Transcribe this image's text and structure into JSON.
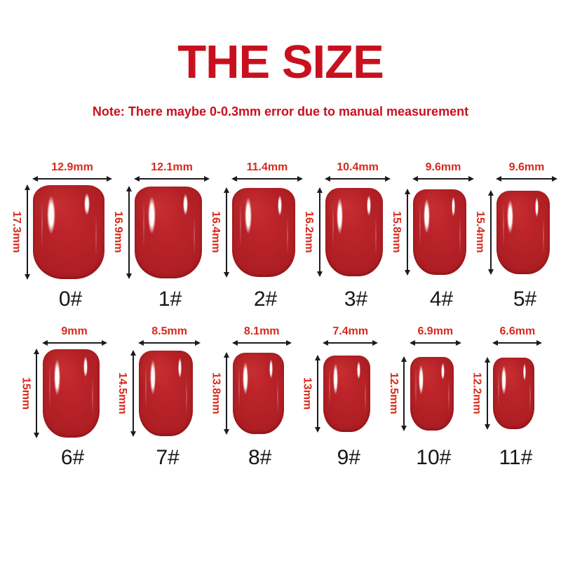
{
  "title": "THE SIZE",
  "note": "Note: There maybe 0-0.3mm error due to manual measurement",
  "colors": {
    "background": "#ffffff",
    "title_red": "#c9101e",
    "measure_red": "#d62a1c",
    "arrow_black": "#1c1c1c",
    "label_black": "#161616",
    "nail_base": "#ad1e23",
    "nail_edge": "#8c151a",
    "nail_light": "#c0262c",
    "shine_white": "#ffffff"
  },
  "rows": [
    {
      "nails": [
        {
          "id": "0#",
          "width_label": "12.9mm",
          "height_label": "17.3mm",
          "width_mm": 12.9,
          "height_mm": 17.3
        },
        {
          "id": "1#",
          "width_label": "12.1mm",
          "height_label": "16.9mm",
          "width_mm": 12.1,
          "height_mm": 16.9
        },
        {
          "id": "2#",
          "width_label": "11.4mm",
          "height_label": "16.4mm",
          "width_mm": 11.4,
          "height_mm": 16.4
        },
        {
          "id": "3#",
          "width_label": "10.4mm",
          "height_label": "16.2mm",
          "width_mm": 10.4,
          "height_mm": 16.2
        },
        {
          "id": "4#",
          "width_label": "9.6mm",
          "height_label": "15.8mm",
          "width_mm": 9.6,
          "height_mm": 15.8
        },
        {
          "id": "5#",
          "width_label": "9.6mm",
          "height_label": "15.4mm",
          "width_mm": 9.6,
          "height_mm": 15.4
        }
      ]
    },
    {
      "nails": [
        {
          "id": "6#",
          "width_label": "9mm",
          "height_label": "15mm",
          "width_mm": 9.0,
          "height_mm": 15.0
        },
        {
          "id": "7#",
          "width_label": "8.5mm",
          "height_label": "14.5mm",
          "width_mm": 8.5,
          "height_mm": 14.5
        },
        {
          "id": "8#",
          "width_label": "8.1mm",
          "height_label": "13.8mm",
          "width_mm": 8.1,
          "height_mm": 13.8
        },
        {
          "id": "9#",
          "width_label": "7.4mm",
          "height_label": "13mm",
          "width_mm": 7.4,
          "height_mm": 13.0
        },
        {
          "id": "10#",
          "width_label": "6.9mm",
          "height_label": "12.5mm",
          "width_mm": 6.9,
          "height_mm": 12.5
        },
        {
          "id": "11#",
          "width_label": "6.6mm",
          "height_label": "12.2mm",
          "width_mm": 6.6,
          "height_mm": 12.2
        }
      ]
    }
  ]
}
